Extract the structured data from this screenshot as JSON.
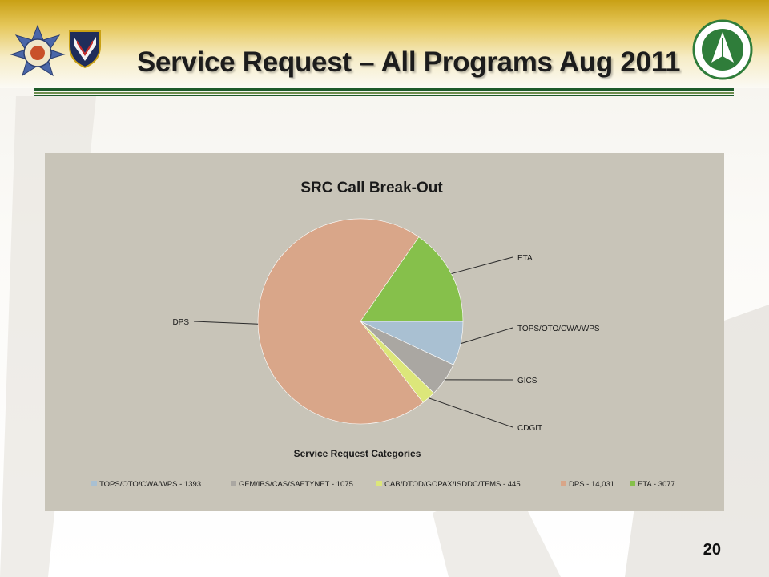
{
  "slide": {
    "title": "Service Request – All Programs Aug 2011",
    "page_number": "20"
  },
  "colors": {
    "band_gold": "#c9a014",
    "rule_green": "#1d5a2a",
    "panel_bg": "#c8c4b8"
  },
  "logos": {
    "left_seal": "seal-icon",
    "left_shield": "shield-icon",
    "right_emblem": "green-emblem-icon"
  },
  "chart_data": {
    "type": "pie",
    "title": "SRC Call Break-Out",
    "xlabel": "Service Request Categories",
    "legend_position": "bottom",
    "slices": [
      {
        "legend": "TOPS/OTO/CWA/WPS - 1393",
        "callout": "TOPS/OTO/CWA/WPS",
        "value": 1393,
        "color": "#a9c0d2"
      },
      {
        "legend": "GFM/IBS/CAS/SAFTYNET - 1075",
        "callout": "GICS",
        "value": 1075,
        "color": "#aaa7a2"
      },
      {
        "legend": "CAB/DTOD/GOPAX/ISDDC/TFMS - 445",
        "callout": "CDGIT",
        "value": 445,
        "color": "#dce67a"
      },
      {
        "legend": "DPS - 14,031",
        "callout": "DPS",
        "value": 14031,
        "color": "#d9a689"
      },
      {
        "legend": "ETA - 3077",
        "callout": "ETA",
        "value": 3077,
        "color": "#86c04b"
      }
    ]
  }
}
